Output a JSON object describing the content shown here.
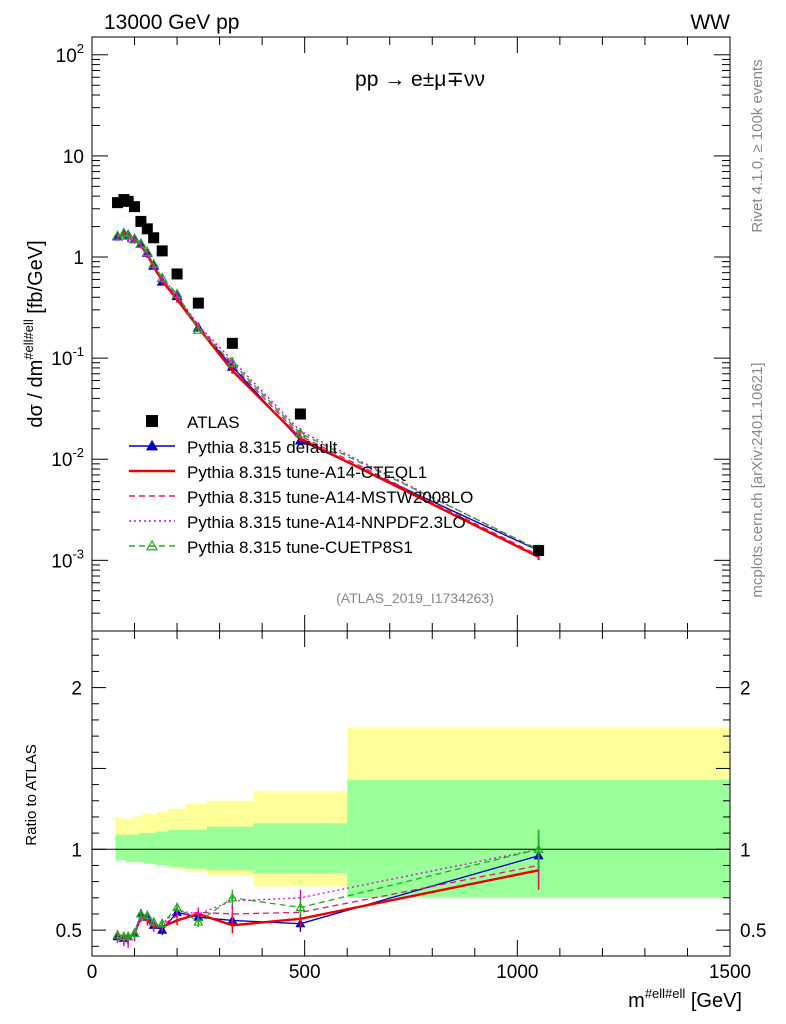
{
  "header": {
    "left": "13000 GeV pp",
    "right": "WW",
    "process": "pp → e±μ∓νν",
    "analysis_id": "(ATLAS_2019_I1734263)"
  },
  "side": {
    "rivet": "Rivet 4.1.0, ≥ 100k events",
    "mcplots": "mcplots.cern.ch [arXiv:2401.10621]"
  },
  "chart_data": [
    {
      "type": "scatter",
      "title": "pp → e±μ∓νν",
      "xlabel": "m^{#ell#ell} [GeV]",
      "ylabel": "dσ / dm^{#ell#ell} [fb/GeV]",
      "yscale": "log",
      "xlim": [
        0,
        1500
      ],
      "ylim": [
        0.0002,
        150
      ],
      "yticks": [
        {
          "label": "10",
          "sup": "-3",
          "value": 0.001
        },
        {
          "label": "10",
          "sup": "-2",
          "value": 0.01
        },
        {
          "label": "10",
          "sup": "-1",
          "value": 0.1
        },
        {
          "label": "1",
          "sup": "",
          "value": 1
        },
        {
          "label": "10",
          "sup": "",
          "value": 10
        },
        {
          "label": "10",
          "sup": "2",
          "value": 100
        }
      ],
      "legend_position": "bottom-left",
      "x": [
        60,
        75,
        85,
        100,
        115,
        130,
        145,
        165,
        200,
        250,
        330,
        490,
        1050
      ],
      "series": [
        {
          "name": "ATLAS",
          "color": "#000000",
          "style": "data",
          "values": [
            3.45,
            3.7,
            3.55,
            3.15,
            2.25,
            1.9,
            1.55,
            1.15,
            0.68,
            0.35,
            0.14,
            0.028,
            0.00125
          ]
        },
        {
          "name": "Pythia 8.315 default",
          "color": "#0000cc",
          "style": "solid-triangle",
          "values": [
            1.6,
            1.72,
            1.65,
            1.5,
            1.35,
            1.1,
            0.82,
            0.57,
            0.41,
            0.2,
            0.082,
            0.0153,
            0.00125
          ]
        },
        {
          "name": "Pythia 8.315 tune-A14-CTEQL1",
          "color": "#ee0000",
          "style": "solid-thick",
          "values": [
            1.6,
            1.7,
            1.6,
            1.5,
            1.3,
            1.05,
            0.8,
            0.58,
            0.38,
            0.2,
            0.075,
            0.016,
            0.00108
          ]
        },
        {
          "name": "Pythia 8.315 tune-A14-MSTW2008LO",
          "color": "#ee1177",
          "style": "dashed",
          "values": [
            1.58,
            1.65,
            1.55,
            1.48,
            1.32,
            1.08,
            0.8,
            0.6,
            0.4,
            0.21,
            0.085,
            0.017,
            0.00112
          ]
        },
        {
          "name": "Pythia 8.315 tune-A14-NNPDF2.3LO",
          "color": "#dd00dd",
          "style": "dotted",
          "values": [
            1.55,
            1.6,
            1.5,
            1.45,
            1.3,
            1.1,
            0.82,
            0.62,
            0.42,
            0.21,
            0.095,
            0.019,
            0.00125
          ]
        },
        {
          "name": "Pythia 8.315 tune-CUETP8S1",
          "color": "#22aa22",
          "style": "dashed-open-triangle",
          "values": [
            1.62,
            1.72,
            1.62,
            1.52,
            1.35,
            1.12,
            0.85,
            0.62,
            0.43,
            0.19,
            0.09,
            0.018,
            0.00128
          ]
        }
      ]
    },
    {
      "type": "line",
      "ylabel": "Ratio to ATLAS",
      "xlabel": "m^{#ell#ell} [GeV]",
      "xlim": [
        0,
        1500
      ],
      "ylim": [
        0.34,
        2.35
      ],
      "yticks": [
        0.5,
        1,
        2
      ],
      "xticks": [
        0,
        500,
        1000,
        1500
      ],
      "bins": [
        [
          55,
          70,
          0.94,
          1.2
        ],
        [
          70,
          80,
          0.94,
          1.19
        ],
        [
          80,
          90,
          0.94,
          1.19
        ],
        [
          90,
          110,
          0.93,
          1.2
        ],
        [
          110,
          120,
          0.93,
          1.21
        ],
        [
          120,
          140,
          0.92,
          1.22
        ],
        [
          140,
          150,
          0.92,
          1.21
        ],
        [
          150,
          180,
          0.9,
          1.23
        ],
        [
          180,
          220,
          0.88,
          1.25
        ],
        [
          220,
          270,
          0.86,
          1.28
        ],
        [
          270,
          380,
          0.84,
          1.3
        ],
        [
          380,
          600,
          0.77,
          1.36
        ],
        [
          600,
          1500,
          0.7,
          1.75
        ]
      ],
      "green_bins": [
        [
          55,
          70,
          0.93,
          1.09
        ],
        [
          70,
          80,
          0.93,
          1.09
        ],
        [
          80,
          90,
          0.92,
          1.09
        ],
        [
          90,
          110,
          0.92,
          1.09
        ],
        [
          110,
          120,
          0.92,
          1.1
        ],
        [
          120,
          140,
          0.91,
          1.1
        ],
        [
          140,
          150,
          0.91,
          1.1
        ],
        [
          150,
          180,
          0.9,
          1.11
        ],
        [
          180,
          220,
          0.89,
          1.12
        ],
        [
          220,
          270,
          0.88,
          1.12
        ],
        [
          270,
          380,
          0.87,
          1.14
        ],
        [
          380,
          600,
          0.85,
          1.16
        ],
        [
          600,
          1500,
          0.7,
          1.43
        ]
      ],
      "series": [
        {
          "name": "Pythia 8.315 default",
          "color": "#0000cc",
          "values": [
            0.46,
            0.45,
            0.46,
            0.48,
            0.6,
            0.58,
            0.53,
            0.5,
            0.61,
            0.58,
            0.56,
            0.54,
            0.96
          ]
        },
        {
          "name": "Pythia 8.315 tune-A14-CTEQL1",
          "color": "#ee0000",
          "values": [
            0.47,
            0.46,
            0.45,
            0.48,
            0.58,
            0.56,
            0.52,
            0.52,
            0.56,
            0.6,
            0.53,
            0.57,
            0.87
          ]
        },
        {
          "name": "Pythia 8.315 tune-A14-MSTW2008LO",
          "color": "#ee1177",
          "values": [
            0.46,
            0.44,
            0.44,
            0.47,
            0.59,
            0.57,
            0.52,
            0.53,
            0.59,
            0.61,
            0.6,
            0.61,
            0.9
          ]
        },
        {
          "name": "Pythia 8.315 tune-A14-NNPDF2.3LO",
          "color": "#dd00dd",
          "values": [
            0.45,
            0.43,
            0.42,
            0.46,
            0.58,
            0.58,
            0.53,
            0.54,
            0.62,
            0.6,
            0.68,
            0.7,
            1.0
          ]
        },
        {
          "name": "Pythia 8.315 tune-CUETP8S1",
          "color": "#22aa22",
          "values": [
            0.47,
            0.46,
            0.46,
            0.48,
            0.6,
            0.59,
            0.55,
            0.54,
            0.64,
            0.55,
            0.7,
            0.64,
            1.0
          ]
        }
      ]
    }
  ]
}
